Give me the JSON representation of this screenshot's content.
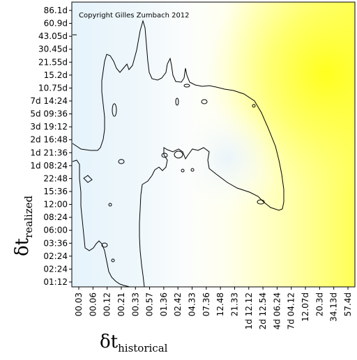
{
  "chart_data": {
    "type": "heatmap",
    "title": "",
    "copyright": "Copyright Gilles Zumbach 2012",
    "xlabel": {
      "symbol": "δt",
      "subscript": "historical"
    },
    "ylabel": {
      "symbol": "δt",
      "subscript": "realized"
    },
    "x_ticks": [
      "00.03",
      "00.06",
      "00.12",
      "00.21",
      "00.33",
      "00.57",
      "01.36",
      "02.42",
      "04.33",
      "07.36",
      "12.48",
      "21.33",
      "1d 12.12",
      "2d 12.54",
      "4d 06.24",
      "7d 04.12",
      "12.07d",
      "20.3d",
      "34.13d",
      "57.4d"
    ],
    "y_ticks": [
      "86.1d",
      "60.9d",
      "43.05d",
      "30.45d",
      "21.55d",
      "15.2d",
      "10.75d",
      "7d 14:24",
      "5d 09:36",
      "3d 19:12",
      "2d 16:48",
      "1d 21:36",
      "1d 08:24",
      "22:48",
      "15:36",
      "12:00",
      "08:24",
      "06:00",
      "03:36",
      "02:24",
      "02:24",
      "01:12"
    ],
    "grid": false,
    "legend": "none",
    "colors": {
      "low": "#e6f3fb",
      "mid": "#ffffff",
      "high": "#ffff1e",
      "contour": "#000000",
      "frame": "#000000"
    },
    "contour_level": "single iso-line separating bluish (low) region on the left from yellow (high) region on the right"
  }
}
